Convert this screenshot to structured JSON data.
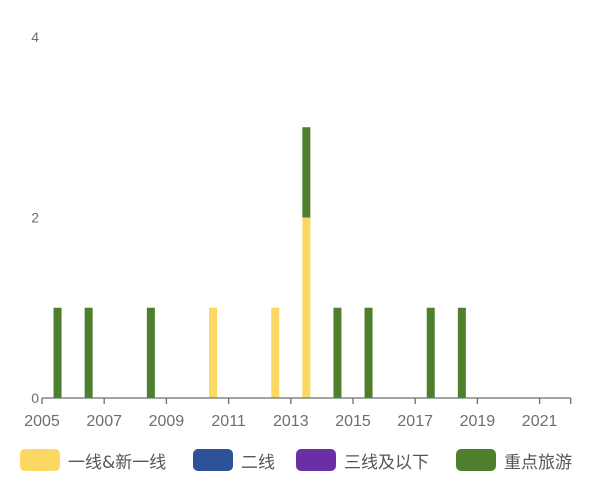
{
  "chart_data": {
    "type": "bar",
    "stacked": true,
    "title": "",
    "xlabel": "",
    "ylabel": "",
    "x": [
      2005,
      2006,
      2007,
      2008,
      2009,
      2010,
      2011,
      2012,
      2013,
      2014,
      2015,
      2016,
      2017,
      2018,
      2019,
      2020,
      2021
    ],
    "x_tick_labels": [
      "2005",
      "2007",
      "2009",
      "2011",
      "2013",
      "2015",
      "2017",
      "2019",
      "2021"
    ],
    "y_tick_labels": [
      "0",
      "2",
      "4"
    ],
    "ylim": [
      0,
      4
    ],
    "grid": false,
    "legend_position": "bottom",
    "series": [
      {
        "name": "一线&新一线",
        "color": "#FAD862",
        "values": [
          0,
          0,
          0,
          0,
          0,
          1,
          0,
          1,
          2,
          0,
          0,
          0,
          0,
          0,
          0,
          0,
          0
        ]
      },
      {
        "name": "二线",
        "color": "#2D5298",
        "values": [
          0,
          0,
          0,
          0,
          0,
          0,
          0,
          0,
          0,
          0,
          0,
          0,
          0,
          0,
          0,
          0,
          0
        ]
      },
      {
        "name": "三线及以下",
        "color": "#6A2FA6",
        "values": [
          0,
          0,
          0,
          0,
          0,
          0,
          0,
          0,
          0,
          0,
          0,
          0,
          0,
          0,
          0,
          0,
          0
        ]
      },
      {
        "name": "重点旅游",
        "color": "#4D7F2C",
        "values": [
          1,
          1,
          0,
          1,
          0,
          0,
          0,
          0,
          1,
          1,
          1,
          0,
          1,
          1,
          0,
          0,
          0
        ]
      }
    ]
  },
  "legend": {
    "items": [
      {
        "label": "一线&新一线",
        "color": "#FAD862"
      },
      {
        "label": "二线",
        "color": "#2D5298"
      },
      {
        "label": "三线及以下",
        "color": "#6A2FA6"
      },
      {
        "label": "重点旅游",
        "color": "#4D7F2C"
      }
    ]
  },
  "axis": {
    "color": "#6e6e6e",
    "label_color": "#6e6e6e"
  }
}
